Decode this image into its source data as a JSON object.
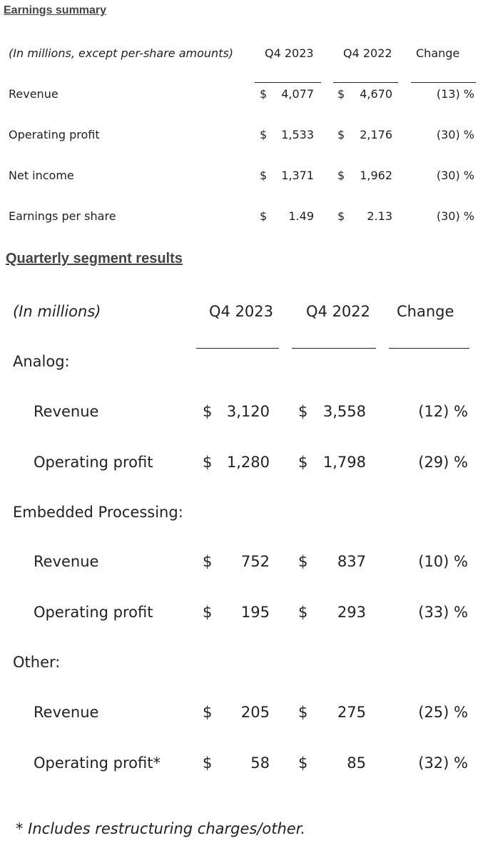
{
  "earnings": {
    "title": "Earnings summary",
    "caption": "(In millions, except per-share amounts)",
    "columns": [
      "Q4 2023",
      "Q4 2022",
      "Change"
    ],
    "rows": [
      {
        "label": "Revenue",
        "a_cur": "$",
        "a": "4,077",
        "b_cur": "$",
        "b": "4,670",
        "change": "(13) %"
      },
      {
        "label": "Operating profit",
        "a_cur": "$",
        "a": "1,533",
        "b_cur": "$",
        "b": "2,176",
        "change": "(30) %"
      },
      {
        "label": "Net income",
        "a_cur": "$",
        "a": "1,371",
        "b_cur": "$",
        "b": "1,962",
        "change": "(30) %"
      },
      {
        "label": "Earnings per share",
        "a_cur": "$",
        "a": "1.49",
        "b_cur": "$",
        "b": "2.13",
        "change": "(30) %"
      }
    ]
  },
  "segments": {
    "title": "Quarterly segment results",
    "caption": "(In millions)",
    "columns": [
      "Q4 2023",
      "Q4 2022",
      "Change"
    ],
    "groups": [
      {
        "name": "Analog:",
        "rows": [
          {
            "label": "Revenue",
            "a_cur": "$",
            "a": "3,120",
            "b_cur": "$",
            "b": "3,558",
            "change": "(12) %"
          },
          {
            "label": "Operating profit",
            "a_cur": "$",
            "a": "1,280",
            "b_cur": "$",
            "b": "1,798",
            "change": "(29) %"
          }
        ]
      },
      {
        "name": "Embedded Processing:",
        "rows": [
          {
            "label": "Revenue",
            "a_cur": "$",
            "a": "752",
            "b_cur": "$",
            "b": "837",
            "change": "(10) %"
          },
          {
            "label": "Operating profit",
            "a_cur": "$",
            "a": "195",
            "b_cur": "$",
            "b": "293",
            "change": "(33) %"
          }
        ]
      },
      {
        "name": "Other:",
        "rows": [
          {
            "label": "Revenue",
            "a_cur": "$",
            "a": "205",
            "b_cur": "$",
            "b": "275",
            "change": "(25) %"
          },
          {
            "label": "Operating profit*",
            "a_cur": "$",
            "a": "58",
            "b_cur": "$",
            "b": "85",
            "change": "(32) %"
          }
        ]
      }
    ],
    "footnote": "* Includes restructuring charges/other."
  }
}
